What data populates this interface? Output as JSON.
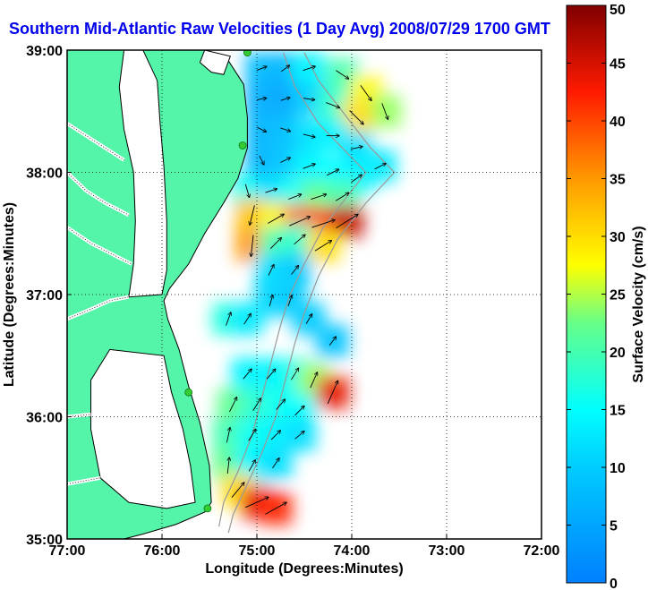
{
  "title": "Southern Mid-Atlantic Raw Velocities (1 Day Avg) 2008/07/29 1700 GMT",
  "colors": {
    "title": "#0000ee",
    "land": "#55f5a9",
    "water": "#ffffff",
    "coastline": "#000000",
    "bathymetry": "#999999",
    "station": "#33cc33",
    "arrows": "#000000"
  },
  "chart_data": {
    "type": "heatmap",
    "xlabel": "Longitude (Degrees:Minutes)",
    "ylabel": "Latitude (Degrees:Minutes)",
    "xlim": [
      -77.0,
      -72.0
    ],
    "ylim": [
      35.0,
      39.0
    ],
    "x_ticks": [
      {
        "value": -77.0,
        "label": "77:00"
      },
      {
        "value": -76.0,
        "label": "76:00"
      },
      {
        "value": -75.0,
        "label": "75:00"
      },
      {
        "value": -74.0,
        "label": "74:00"
      },
      {
        "value": -73.0,
        "label": "73:00"
      },
      {
        "value": -72.0,
        "label": "72:00"
      }
    ],
    "y_ticks": [
      {
        "value": 35.0,
        "label": "35:00"
      },
      {
        "value": 36.0,
        "label": "36:00"
      },
      {
        "value": 37.0,
        "label": "37:00"
      },
      {
        "value": 38.0,
        "label": "38:00"
      },
      {
        "value": 39.0,
        "label": "39:00"
      }
    ],
    "grid": true,
    "colorbar": {
      "label": "Surface Velocity (cm/s)",
      "min": 0,
      "max": 50,
      "ticks": [
        0,
        5,
        10,
        15,
        20,
        25,
        30,
        35,
        40,
        45,
        50
      ],
      "position": "right"
    },
    "coastline": [
      [
        -77.0,
        39.0
      ],
      [
        -75.55,
        39.0
      ],
      [
        -75.33,
        38.95
      ],
      [
        -75.14,
        38.72
      ],
      [
        -75.1,
        38.45
      ],
      [
        -75.1,
        38.2
      ],
      [
        -75.2,
        37.95
      ],
      [
        -75.35,
        37.75
      ],
      [
        -75.55,
        37.5
      ],
      [
        -75.72,
        37.25
      ],
      [
        -75.92,
        37.05
      ],
      [
        -75.98,
        36.95
      ],
      [
        -75.94,
        36.8
      ],
      [
        -75.82,
        36.55
      ],
      [
        -75.72,
        36.25
      ],
      [
        -75.6,
        35.95
      ],
      [
        -75.5,
        35.6
      ],
      [
        -75.48,
        35.3
      ],
      [
        -75.55,
        35.22
      ],
      [
        -75.85,
        35.12
      ],
      [
        -76.2,
        35.04
      ],
      [
        -76.4,
        35.0
      ],
      [
        -77.0,
        35.0
      ]
    ],
    "bays": [
      {
        "name": "",
        "polygon": [
          [
            -76.4,
            39.0
          ],
          [
            -76.2,
            39.0
          ],
          [
            -76.05,
            38.75
          ],
          [
            -76.02,
            38.4
          ],
          [
            -75.98,
            38.05
          ],
          [
            -75.95,
            37.6
          ],
          [
            -75.95,
            37.2
          ],
          [
            -76.0,
            37.0
          ],
          [
            -76.35,
            36.98
          ],
          [
            -76.3,
            37.25
          ],
          [
            -76.28,
            37.6
          ],
          [
            -76.3,
            38.0
          ],
          [
            -76.4,
            38.35
          ],
          [
            -76.45,
            38.7
          ]
        ]
      },
      {
        "name": "",
        "polygon": [
          [
            -75.55,
            39.0
          ],
          [
            -75.28,
            38.95
          ],
          [
            -75.35,
            38.8
          ],
          [
            -75.48,
            38.82
          ],
          [
            -75.6,
            38.9
          ]
        ]
      },
      {
        "name": "",
        "polygon": [
          [
            -76.55,
            36.55
          ],
          [
            -75.98,
            36.5
          ],
          [
            -75.9,
            36.2
          ],
          [
            -75.78,
            35.9
          ],
          [
            -75.7,
            35.6
          ],
          [
            -75.65,
            35.3
          ],
          [
            -75.95,
            35.25
          ],
          [
            -76.35,
            35.3
          ],
          [
            -76.65,
            35.5
          ],
          [
            -76.75,
            35.9
          ],
          [
            -76.75,
            36.3
          ]
        ]
      }
    ],
    "rivers": [
      [
        [
          -77.0,
          38.4
        ],
        [
          -76.8,
          38.3
        ],
        [
          -76.6,
          38.2
        ],
        [
          -76.4,
          38.1
        ]
      ],
      [
        [
          -77.0,
          38.0
        ],
        [
          -76.8,
          37.85
        ],
        [
          -76.6,
          37.75
        ],
        [
          -76.35,
          37.65
        ]
      ],
      [
        [
          -77.0,
          37.55
        ],
        [
          -76.75,
          37.42
        ],
        [
          -76.5,
          37.32
        ],
        [
          -76.32,
          37.25
        ]
      ],
      [
        [
          -77.0,
          36.8
        ],
        [
          -76.75,
          36.88
        ],
        [
          -76.55,
          36.95
        ],
        [
          -76.35,
          36.98
        ]
      ],
      [
        [
          -77.0,
          36.0
        ],
        [
          -76.75,
          36.02
        ]
      ],
      [
        [
          -77.0,
          35.45
        ],
        [
          -76.65,
          35.5
        ]
      ]
    ],
    "bathymetry": [
      [
        [
          -74.72,
          38.98
        ],
        [
          -74.6,
          38.7
        ],
        [
          -74.35,
          38.4
        ],
        [
          -74.1,
          38.2
        ],
        [
          -73.85,
          38.0
        ],
        [
          -74.05,
          37.8
        ],
        [
          -74.3,
          37.55
        ],
        [
          -74.5,
          37.25
        ],
        [
          -74.65,
          37.0
        ],
        [
          -74.75,
          36.75
        ],
        [
          -74.85,
          36.45
        ],
        [
          -74.95,
          36.15
        ],
        [
          -75.05,
          35.85
        ],
        [
          -75.2,
          35.55
        ],
        [
          -75.35,
          35.3
        ],
        [
          -75.4,
          35.1
        ]
      ],
      [
        [
          -74.5,
          38.98
        ],
        [
          -74.35,
          38.75
        ],
        [
          -74.05,
          38.45
        ],
        [
          -73.8,
          38.2
        ],
        [
          -73.55,
          38.0
        ],
        [
          -73.85,
          37.75
        ],
        [
          -74.15,
          37.45
        ],
        [
          -74.35,
          37.15
        ],
        [
          -74.5,
          36.85
        ],
        [
          -74.6,
          36.6
        ],
        [
          -74.7,
          36.3
        ],
        [
          -74.8,
          36.0
        ],
        [
          -74.95,
          35.7
        ],
        [
          -75.1,
          35.45
        ],
        [
          -75.25,
          35.2
        ],
        [
          -75.3,
          35.05
        ]
      ]
    ],
    "hf_radar_stations": [
      [
        -75.1,
        38.98
      ],
      [
        -75.15,
        38.22
      ],
      [
        -75.72,
        36.2
      ],
      [
        -75.52,
        35.25
      ]
    ],
    "velocity_points": [
      {
        "lon": -74.95,
        "lat": 38.85,
        "speed": 8,
        "u": 0.5,
        "v": 0.2
      },
      {
        "lon": -74.7,
        "lat": 38.85,
        "speed": 7,
        "u": 0.4,
        "v": 0.3
      },
      {
        "lon": -74.45,
        "lat": 38.85,
        "speed": 14,
        "u": 0.6,
        "v": 0.2
      },
      {
        "lon": -74.1,
        "lat": 38.8,
        "speed": 20,
        "u": 0.6,
        "v": -0.4
      },
      {
        "lon": -73.85,
        "lat": 38.65,
        "speed": 28,
        "u": 0.5,
        "v": -0.7
      },
      {
        "lon": -73.65,
        "lat": 38.5,
        "speed": 24,
        "u": 0.3,
        "v": -0.8
      },
      {
        "lon": -74.95,
        "lat": 38.6,
        "speed": 6,
        "u": 0.5,
        "v": 0.1
      },
      {
        "lon": -74.7,
        "lat": 38.6,
        "speed": 5,
        "u": 0.3,
        "v": 0.1
      },
      {
        "lon": -74.45,
        "lat": 38.6,
        "speed": 10,
        "u": 0.7,
        "v": -0.1
      },
      {
        "lon": -74.2,
        "lat": 38.55,
        "speed": 18,
        "u": 0.8,
        "v": -0.3
      },
      {
        "lon": -73.95,
        "lat": 38.45,
        "speed": 30,
        "u": 0.6,
        "v": -0.6
      },
      {
        "lon": -74.95,
        "lat": 38.35,
        "speed": 7,
        "u": 0.4,
        "v": -0.2
      },
      {
        "lon": -74.7,
        "lat": 38.35,
        "speed": 8,
        "u": 0.6,
        "v": -0.2
      },
      {
        "lon": -74.45,
        "lat": 38.3,
        "speed": 12,
        "u": 0.8,
        "v": -0.2
      },
      {
        "lon": -74.2,
        "lat": 38.3,
        "speed": 14,
        "u": 0.9,
        "v": 0.0
      },
      {
        "lon": -73.95,
        "lat": 38.2,
        "speed": 12,
        "u": 0.9,
        "v": 0.2
      },
      {
        "lon": -73.7,
        "lat": 38.05,
        "speed": 13,
        "u": 0.8,
        "v": 0.4
      },
      {
        "lon": -74.95,
        "lat": 38.1,
        "speed": 7,
        "u": 0.2,
        "v": -0.4
      },
      {
        "lon": -74.7,
        "lat": 38.1,
        "speed": 9,
        "u": 0.6,
        "v": 0.3
      },
      {
        "lon": -74.45,
        "lat": 38.05,
        "speed": 14,
        "u": 0.8,
        "v": 0.3
      },
      {
        "lon": -74.2,
        "lat": 38.0,
        "speed": 15,
        "u": 0.8,
        "v": 0.4
      },
      {
        "lon": -73.95,
        "lat": 37.95,
        "speed": 14,
        "u": 0.7,
        "v": 0.5
      },
      {
        "lon": -75.1,
        "lat": 37.85,
        "speed": 16,
        "u": 0.2,
        "v": -0.7
      },
      {
        "lon": -74.85,
        "lat": 37.85,
        "speed": 12,
        "u": 0.6,
        "v": 0.2
      },
      {
        "lon": -74.6,
        "lat": 37.8,
        "speed": 16,
        "u": 0.8,
        "v": 0.3
      },
      {
        "lon": -74.35,
        "lat": 37.8,
        "speed": 22,
        "u": 0.9,
        "v": 0.3
      },
      {
        "lon": -74.1,
        "lat": 37.8,
        "speed": 20,
        "u": 0.8,
        "v": 0.5
      },
      {
        "lon": -75.05,
        "lat": 37.65,
        "speed": 32,
        "u": -0.2,
        "v": -0.8
      },
      {
        "lon": -74.8,
        "lat": 37.62,
        "speed": 28,
        "u": 0.7,
        "v": 0.4
      },
      {
        "lon": -74.55,
        "lat": 37.6,
        "speed": 38,
        "u": 0.9,
        "v": 0.4
      },
      {
        "lon": -74.3,
        "lat": 37.58,
        "speed": 42,
        "u": 0.9,
        "v": 0.3
      },
      {
        "lon": -74.05,
        "lat": 37.6,
        "speed": 46,
        "u": 0.8,
        "v": 0.5
      },
      {
        "lon": -75.05,
        "lat": 37.4,
        "speed": 35,
        "u": -0.1,
        "v": -0.9
      },
      {
        "lon": -74.8,
        "lat": 37.42,
        "speed": 20,
        "u": 0.5,
        "v": 0.5
      },
      {
        "lon": -74.55,
        "lat": 37.45,
        "speed": 18,
        "u": 0.7,
        "v": 0.6
      },
      {
        "lon": -74.3,
        "lat": 37.4,
        "speed": 30,
        "u": 0.8,
        "v": 0.5
      },
      {
        "lon": -74.85,
        "lat": 37.2,
        "speed": 12,
        "u": 0.3,
        "v": 0.6
      },
      {
        "lon": -74.6,
        "lat": 37.2,
        "speed": 10,
        "u": 0.4,
        "v": 0.5
      },
      {
        "lon": -74.85,
        "lat": 36.95,
        "speed": 11,
        "u": 0.2,
        "v": 0.7
      },
      {
        "lon": -74.65,
        "lat": 36.95,
        "speed": 10,
        "u": 0.2,
        "v": 0.6
      },
      {
        "lon": -75.3,
        "lat": 36.8,
        "speed": 17,
        "u": 0.3,
        "v": 0.8
      },
      {
        "lon": -75.1,
        "lat": 36.8,
        "speed": 13,
        "u": 0.4,
        "v": 0.6
      },
      {
        "lon": -74.45,
        "lat": 36.8,
        "speed": 10,
        "u": 0.3,
        "v": 0.5
      },
      {
        "lon": -74.2,
        "lat": 36.62,
        "speed": 9,
        "u": 0.3,
        "v": 0.4
      },
      {
        "lon": -75.1,
        "lat": 36.35,
        "speed": 14,
        "u": 0.5,
        "v": 0.6
      },
      {
        "lon": -74.85,
        "lat": 36.35,
        "speed": 14,
        "u": 0.6,
        "v": 0.7
      },
      {
        "lon": -74.6,
        "lat": 36.35,
        "speed": 16,
        "u": 0.5,
        "v": 0.8
      },
      {
        "lon": -74.4,
        "lat": 36.3,
        "speed": 24,
        "u": 0.4,
        "v": 0.9
      },
      {
        "lon": -74.2,
        "lat": 36.2,
        "speed": 44,
        "u": 0.4,
        "v": 0.9
      },
      {
        "lon": -75.25,
        "lat": 36.1,
        "speed": 22,
        "u": 0.4,
        "v": 0.8
      },
      {
        "lon": -75.0,
        "lat": 36.1,
        "speed": 18,
        "u": 0.5,
        "v": 0.8
      },
      {
        "lon": -74.75,
        "lat": 36.1,
        "speed": 16,
        "u": 0.6,
        "v": 0.7
      },
      {
        "lon": -74.55,
        "lat": 36.05,
        "speed": 15,
        "u": 0.6,
        "v": 0.6
      },
      {
        "lon": -75.3,
        "lat": 35.85,
        "speed": 20,
        "u": 0.2,
        "v": 0.9
      },
      {
        "lon": -75.05,
        "lat": 35.85,
        "speed": 16,
        "u": 0.5,
        "v": 0.8
      },
      {
        "lon": -74.8,
        "lat": 35.85,
        "speed": 14,
        "u": 0.6,
        "v": 0.6
      },
      {
        "lon": -74.55,
        "lat": 35.85,
        "speed": 12,
        "u": 0.6,
        "v": 0.5
      },
      {
        "lon": -75.3,
        "lat": 35.6,
        "speed": 22,
        "u": 0.1,
        "v": 0.9
      },
      {
        "lon": -75.05,
        "lat": 35.6,
        "speed": 14,
        "u": 0.4,
        "v": 0.7
      },
      {
        "lon": -74.8,
        "lat": 35.62,
        "speed": 12,
        "u": 0.4,
        "v": 0.6
      },
      {
        "lon": -75.2,
        "lat": 35.4,
        "speed": 30,
        "u": 0.5,
        "v": 0.6
      },
      {
        "lon": -75.0,
        "lat": 35.3,
        "speed": 44,
        "u": 0.9,
        "v": 0.4
      },
      {
        "lon": -74.8,
        "lat": 35.25,
        "speed": 42,
        "u": 0.9,
        "v": 0.5
      }
    ]
  }
}
